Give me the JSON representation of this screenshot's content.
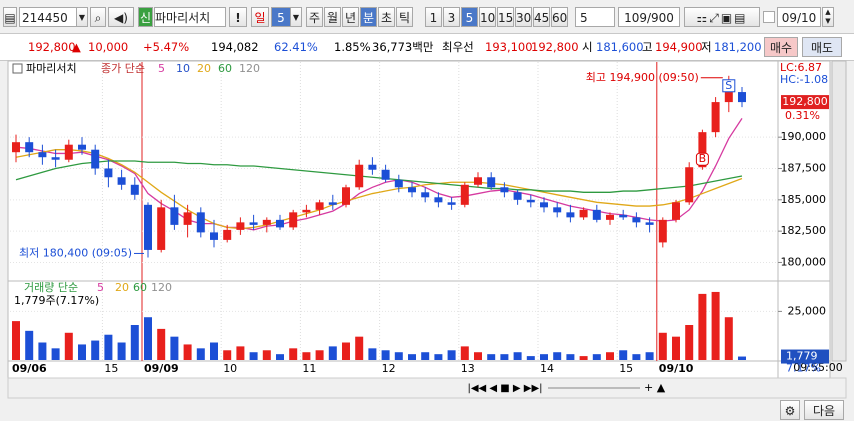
{
  "toolbar": {
    "code": "214450",
    "tag": "신",
    "name": "파마리서치",
    "alert": "!",
    "period": "일",
    "period_count": "5",
    "units": [
      "주",
      "월",
      "년",
      "분",
      "초",
      "틱"
    ],
    "minutes": [
      "1",
      "3",
      "5",
      "10",
      "15",
      "30",
      "45",
      "60"
    ],
    "count": "5",
    "range": "109/900",
    "date": "09/10"
  },
  "quote": {
    "price": "192,800",
    "arrow": "▲",
    "change": "10,000",
    "pct": "+5.47%",
    "volume": "194,082",
    "ratio": "62.41%",
    "turnover": "1.85%",
    "amount": "36,773백만",
    "best": "최우선",
    "ask": "193,100",
    "bid": "192,800",
    "open_label": "시",
    "open": "181,600",
    "high_label": "고",
    "high": "194,900",
    "low_label": "저",
    "low": "181,200",
    "buy": "매수",
    "sell": "매도"
  },
  "price_chart": {
    "type": "candlestick",
    "legend_title": "파마리서치",
    "legend_kind": "종가 단순",
    "up_color": "#e8201c",
    "down_color": "#1c4fd6",
    "categories": [
      "09/06",
      null,
      null,
      null,
      null,
      null,
      null,
      "15",
      null,
      null,
      "09/09",
      null,
      null,
      null,
      null,
      null,
      "10",
      null,
      null,
      null,
      null,
      null,
      "11",
      null,
      null,
      null,
      null,
      null,
      "12",
      null,
      null,
      null,
      null,
      null,
      "13",
      null,
      null,
      null,
      null,
      null,
      "14",
      null,
      null,
      null,
      null,
      null,
      "15",
      null,
      null,
      "09/10",
      null,
      null,
      null,
      null,
      null,
      null
    ],
    "candles": [
      [
        188800,
        190200,
        188000,
        189600
      ],
      [
        189600,
        190000,
        188400,
        188800
      ],
      [
        188800,
        189400,
        187800,
        188400
      ],
      [
        188400,
        189000,
        187600,
        188200
      ],
      [
        188200,
        189800,
        188000,
        189400
      ],
      [
        189400,
        190000,
        188600,
        189000
      ],
      [
        189000,
        189400,
        187000,
        187500
      ],
      [
        187500,
        188200,
        186000,
        186800
      ],
      [
        186800,
        187400,
        185800,
        186200
      ],
      [
        186200,
        186800,
        185000,
        185400
      ],
      [
        184600,
        184800,
        180400,
        181000
      ],
      [
        181000,
        185000,
        180800,
        184400
      ],
      [
        184400,
        185400,
        182600,
        183000
      ],
      [
        183000,
        184600,
        182000,
        184000
      ],
      [
        184000,
        184400,
        182000,
        182400
      ],
      [
        182400,
        183400,
        181200,
        181800
      ],
      [
        181800,
        183000,
        181600,
        182600
      ],
      [
        182600,
        183600,
        182200,
        183200
      ],
      [
        183200,
        183800,
        182600,
        183000
      ],
      [
        183000,
        183600,
        182400,
        183400
      ],
      [
        183400,
        183800,
        182600,
        182800
      ],
      [
        182800,
        184200,
        182600,
        184000
      ],
      [
        184000,
        184600,
        183600,
        184200
      ],
      [
        184200,
        185000,
        183800,
        184800
      ],
      [
        184800,
        185400,
        184200,
        184600
      ],
      [
        184600,
        186200,
        184400,
        186000
      ],
      [
        186000,
        188200,
        185800,
        187800
      ],
      [
        187800,
        188400,
        187000,
        187400
      ],
      [
        187400,
        187800,
        186400,
        186600
      ],
      [
        186600,
        187000,
        185600,
        186000
      ],
      [
        186000,
        186400,
        185200,
        185600
      ],
      [
        185600,
        186000,
        184800,
        185200
      ],
      [
        185200,
        185600,
        184400,
        184800
      ],
      [
        184800,
        185200,
        184200,
        184600
      ],
      [
        184600,
        186400,
        184400,
        186200
      ],
      [
        186200,
        187200,
        186000,
        186800
      ],
      [
        186800,
        187200,
        185800,
        186000
      ],
      [
        186000,
        186400,
        185200,
        185600
      ],
      [
        185600,
        185800,
        184600,
        185000
      ],
      [
        185000,
        185400,
        184400,
        184800
      ],
      [
        184800,
        185200,
        184000,
        184400
      ],
      [
        184400,
        184800,
        183600,
        184000
      ],
      [
        184000,
        184600,
        183200,
        183600
      ],
      [
        183600,
        184400,
        183400,
        184200
      ],
      [
        184200,
        184600,
        183200,
        183400
      ],
      [
        183400,
        184000,
        183000,
        183800
      ],
      [
        183800,
        184200,
        183400,
        183600
      ],
      [
        183600,
        184000,
        182800,
        183200
      ],
      [
        183200,
        183600,
        182400,
        183000
      ],
      [
        181600,
        183600,
        181200,
        183400
      ],
      [
        183400,
        185000,
        183200,
        184800
      ],
      [
        184800,
        188000,
        184600,
        187600
      ],
      [
        187600,
        190600,
        187400,
        190400
      ],
      [
        190400,
        193200,
        190000,
        192800
      ],
      [
        192800,
        194900,
        192000,
        193600
      ],
      [
        193600,
        194000,
        192400,
        192800
      ]
    ],
    "series": [
      {
        "name": "5",
        "color": "#d63aa0",
        "values": [
          189200,
          189100,
          188900,
          188700,
          188700,
          188800,
          188500,
          188200,
          187700,
          187100,
          185500,
          184700,
          184100,
          183400,
          183100,
          183100,
          182800,
          182800,
          182600,
          182900,
          183000,
          183300,
          183500,
          183800,
          184100,
          184700,
          185500,
          186000,
          186400,
          186600,
          186400,
          186000,
          185500,
          185200,
          185300,
          185500,
          185700,
          185800,
          185600,
          185400,
          185100,
          184800,
          184500,
          184300,
          184100,
          183900,
          183800,
          183600,
          183400,
          183300,
          183400,
          184200,
          185700,
          187700,
          189900,
          191500
        ]
      },
      {
        "name": "10",
        "color": "#2450c8"
      },
      {
        "name": "20",
        "color": "#e0a818",
        "values": [
          188400,
          188600,
          188800,
          189000,
          189000,
          188900,
          188700,
          188300,
          187800,
          187200,
          186400,
          185600,
          184900,
          184200,
          183600,
          183100,
          182800,
          182700,
          182800,
          183000,
          183300,
          183600,
          183900,
          184200,
          184600,
          184900,
          185200,
          185500,
          185700,
          185900,
          186000,
          186200,
          186300,
          186400,
          186400,
          186400,
          186300,
          186200,
          186000,
          185800,
          185600,
          185400,
          185200,
          185000,
          184800,
          184700,
          184600,
          184500,
          184500,
          184600,
          184800,
          185100,
          185500,
          185900,
          186300,
          186700
        ]
      },
      {
        "name": "60",
        "color": "#2e9a40",
        "values": [
          186600,
          186900,
          187200,
          187500,
          187700,
          187900,
          188000,
          188100,
          188100,
          188100,
          188000,
          188000,
          188000,
          187900,
          187900,
          187800,
          187800,
          187700,
          187700,
          187600,
          187500,
          187400,
          187300,
          187200,
          187100,
          187000,
          186900,
          186800,
          186700,
          186600,
          186500,
          186400,
          186300,
          186200,
          186100,
          186000,
          185900,
          185900,
          185800,
          185800,
          185700,
          185700,
          185700,
          185600,
          185600,
          185600,
          185700,
          185700,
          185800,
          185900,
          186000,
          186100,
          186300,
          186500,
          186700,
          186900
        ]
      },
      {
        "name": "120",
        "color": "#909090"
      }
    ],
    "ylim": [
      178600,
      196000
    ],
    "yticks": [
      {
        "value": 180000,
        "label": "180,000"
      },
      {
        "value": 182500,
        "label": "182,500"
      },
      {
        "value": 185000,
        "label": "185,000"
      },
      {
        "value": 187500,
        "label": "187,500"
      },
      {
        "value": 190000,
        "label": "190,000"
      }
    ],
    "last_label": "192,800",
    "last_value": 192800,
    "last_pct": "0.31%",
    "lc": "LC:6.87",
    "hc": "HC:-1.08",
    "max_note": "최고 194,900 (09:50)",
    "min_note": "최저 180,400 (09:05)",
    "signal_buy": "B",
    "signal_sell": "S"
  },
  "volume_chart": {
    "type": "bar",
    "legend_kind": "거래량 단순",
    "legend": [
      {
        "name": "5",
        "color": "#d63aa0"
      },
      {
        "name": "20",
        "color": "#e0a818"
      },
      {
        "name": "60",
        "color": "#2e9a40"
      },
      {
        "name": "120",
        "color": "#909090"
      }
    ],
    "note": "1,779주(7.17%)",
    "values": [
      20000,
      15000,
      9000,
      6000,
      14000,
      8000,
      10000,
      13000,
      9000,
      18000,
      22000,
      16000,
      12000,
      8000,
      6000,
      9000,
      5000,
      7000,
      4000,
      5000,
      3000,
      6000,
      4000,
      5000,
      7000,
      9000,
      12000,
      6000,
      5000,
      4000,
      3000,
      4000,
      3000,
      5000,
      7000,
      4000,
      3000,
      3000,
      4000,
      2000,
      3000,
      4000,
      3000,
      2000,
      3000,
      4000,
      5000,
      3000,
      4000,
      14000,
      12000,
      18000,
      34000,
      35000,
      22000,
      1779
    ],
    "ylim": [
      0,
      36000
    ],
    "yticks": [
      {
        "value": 25000,
        "label": "25,000"
      }
    ],
    "last_label": "1,779",
    "last_value": 1779,
    "last_pct": "7.17%"
  },
  "footer": {
    "time": "09:55:00",
    "next": "다음"
  }
}
